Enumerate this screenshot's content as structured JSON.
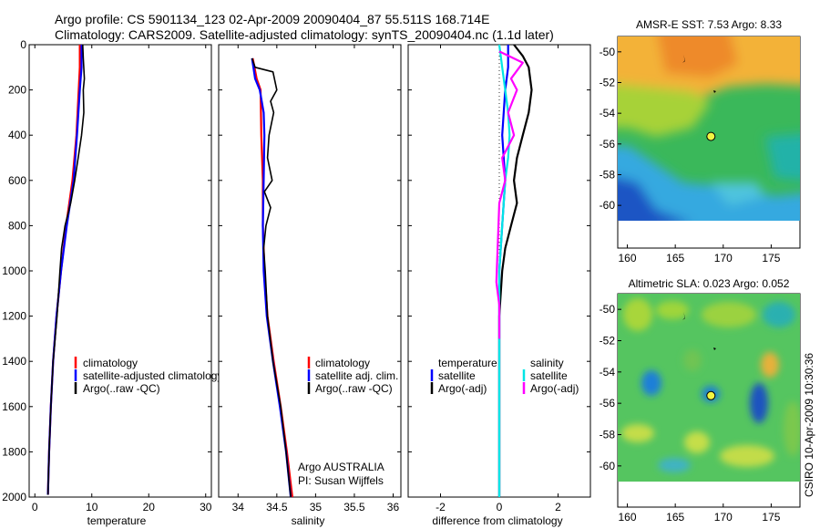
{
  "header": {
    "line1": "Argo profile: CS 5901134_123 02-Apr-2009 20090404_87 55.511S 168.714E",
    "line2": "Climatology: CARS2009. Satellite-adjusted climatology: synTS_20090404.nc (1.1d later)"
  },
  "side_label": "CSIRO 10-Apr-2009 10:30:36",
  "colors": {
    "climatology": "#ff0000",
    "satellite": "#0000ff",
    "argo": "#000000",
    "sat_salinity": "#00e5e5",
    "argo_adj_salinity": "#ff00ff"
  },
  "chart_data": [
    {
      "type": "line",
      "xlabel": "temperature",
      "xlim": [
        -1,
        31
      ],
      "ylim": [
        0,
        2000
      ],
      "xticks": [
        0,
        10,
        20,
        30
      ],
      "yticks": [
        0,
        200,
        400,
        600,
        800,
        1000,
        1200,
        1400,
        1600,
        1800,
        2000
      ],
      "y_reversed": true,
      "legend": [
        "climatology",
        "satellite-adjusted climatology",
        "Argo(..raw -QC)"
      ],
      "series": [
        {
          "name": "climatology",
          "points": [
            [
              7.9,
              0
            ],
            [
              7.9,
              100
            ],
            [
              7.7,
              200
            ],
            [
              7.3,
              400
            ],
            [
              6.6,
              600
            ],
            [
              5.5,
              800
            ],
            [
              4.6,
              1000
            ],
            [
              3.8,
              1200
            ],
            [
              3.2,
              1400
            ],
            [
              2.8,
              1600
            ],
            [
              2.5,
              1800
            ],
            [
              2.3,
              1990
            ]
          ]
        },
        {
          "name": "satellite-adjusted climatology",
          "points": [
            [
              8.2,
              0
            ],
            [
              8.2,
              100
            ],
            [
              7.9,
              200
            ],
            [
              7.4,
              400
            ],
            [
              6.8,
              600
            ],
            [
              5.6,
              800
            ],
            [
              4.6,
              1000
            ],
            [
              3.8,
              1200
            ],
            [
              3.2,
              1400
            ],
            [
              2.8,
              1600
            ],
            [
              2.5,
              1800
            ],
            [
              2.3,
              1990
            ]
          ]
        },
        {
          "name": "Argo(..raw -QC)",
          "points": [
            [
              8.4,
              0
            ],
            [
              8.5,
              60
            ],
            [
              8.7,
              150
            ],
            [
              8.5,
              200
            ],
            [
              8.6,
              300
            ],
            [
              8.2,
              400
            ],
            [
              7.6,
              500
            ],
            [
              7.0,
              600
            ],
            [
              6.3,
              700
            ],
            [
              5.3,
              800
            ],
            [
              4.7,
              900
            ],
            [
              4.4,
              1000
            ],
            [
              3.9,
              1200
            ],
            [
              3.2,
              1400
            ],
            [
              2.8,
              1600
            ],
            [
              2.5,
              1800
            ],
            [
              2.3,
              1990
            ]
          ]
        }
      ]
    },
    {
      "type": "line",
      "xlabel": "salinity",
      "xlim": [
        33.75,
        36.1
      ],
      "ylim": [
        0,
        2000
      ],
      "xticks": [
        34,
        34.5,
        35,
        35.5,
        36
      ],
      "yticks": [
        0,
        200,
        400,
        600,
        800,
        1000,
        1200,
        1400,
        1600,
        1800,
        2000
      ],
      "y_reversed": true,
      "legend": [
        "climatology",
        "satellite adj. clim.",
        "Argo(..raw -QC)"
      ],
      "annotations": [
        "Argo AUSTRALIA",
        "PI: Susan Wijffels"
      ],
      "series": [
        {
          "name": "climatology",
          "points": [
            [
              34.19,
              60
            ],
            [
              34.24,
              150
            ],
            [
              34.29,
              200
            ],
            [
              34.3,
              400
            ],
            [
              34.32,
              600
            ],
            [
              34.32,
              800
            ],
            [
              34.34,
              1000
            ],
            [
              34.38,
              1200
            ],
            [
              34.46,
              1400
            ],
            [
              34.55,
              1600
            ],
            [
              34.63,
              1800
            ],
            [
              34.7,
              2000
            ]
          ]
        },
        {
          "name": "satellite adj. clim.",
          "points": [
            [
              34.18,
              60
            ],
            [
              34.22,
              150
            ],
            [
              34.28,
              200
            ],
            [
              34.33,
              300
            ],
            [
              34.34,
              400
            ],
            [
              34.33,
              600
            ],
            [
              34.32,
              800
            ],
            [
              34.33,
              1000
            ],
            [
              34.37,
              1200
            ],
            [
              34.45,
              1400
            ],
            [
              34.54,
              1600
            ],
            [
              34.62,
              1800
            ],
            [
              34.68,
              2000
            ]
          ]
        },
        {
          "name": "Argo(..raw -QC)",
          "points": [
            [
              34.18,
              60
            ],
            [
              34.22,
              100
            ],
            [
              34.45,
              120
            ],
            [
              34.5,
              200
            ],
            [
              34.42,
              250
            ],
            [
              34.46,
              300
            ],
            [
              34.4,
              400
            ],
            [
              34.38,
              500
            ],
            [
              34.44,
              600
            ],
            [
              34.34,
              650
            ],
            [
              34.42,
              720
            ],
            [
              34.36,
              800
            ],
            [
              34.33,
              900
            ],
            [
              34.35,
              1000
            ],
            [
              34.38,
              1200
            ],
            [
              34.45,
              1400
            ],
            [
              34.55,
              1600
            ],
            [
              34.62,
              1800
            ],
            [
              34.68,
              2000
            ]
          ]
        }
      ]
    },
    {
      "type": "line",
      "xlabel": "difference from climatology",
      "xlim": [
        -3.1,
        3.1
      ],
      "ylim": [
        0,
        2000
      ],
      "xticks": [
        -2,
        0,
        2
      ],
      "yticks": [
        0,
        200,
        400,
        600,
        800,
        1000,
        1200,
        1400,
        1600,
        1800,
        2000
      ],
      "y_reversed": true,
      "legend_left_title": "temperature",
      "legend_right_title": "salinity",
      "legend": [
        "satellite",
        "Argo(-adj)",
        "satellite",
        "Argo(-adj)"
      ],
      "series": [
        {
          "name": "temperature satellite",
          "points": [
            [
              0.3,
              0
            ],
            [
              0.3,
              100
            ],
            [
              0.2,
              200
            ],
            [
              0.1,
              400
            ],
            [
              0.2,
              600
            ],
            [
              0.1,
              800
            ],
            [
              0.0,
              1000
            ],
            [
              0.0,
              1200
            ],
            [
              0.0,
              1400
            ],
            [
              0.0,
              1600
            ],
            [
              0.0,
              1800
            ],
            [
              0.0,
              2000
            ]
          ]
        },
        {
          "name": "temperature Argo(-adj)",
          "points": [
            [
              0.5,
              0
            ],
            [
              0.8,
              50
            ],
            [
              1.0,
              100
            ],
            [
              1.1,
              200
            ],
            [
              1.0,
              300
            ],
            [
              0.8,
              400
            ],
            [
              0.6,
              500
            ],
            [
              0.5,
              600
            ],
            [
              0.6,
              700
            ],
            [
              0.4,
              800
            ],
            [
              0.2,
              900
            ],
            [
              0.1,
              1000
            ],
            [
              0.0,
              1200
            ],
            [
              0.0,
              1600
            ],
            [
              0.0,
              2000
            ]
          ]
        },
        {
          "name": "salinity satellite",
          "points": [
            [
              0.0,
              0
            ],
            [
              0.1,
              100
            ],
            [
              0.2,
              200
            ],
            [
              0.3,
              300
            ],
            [
              0.35,
              400
            ],
            [
              0.3,
              500
            ],
            [
              0.2,
              600
            ],
            [
              0.1,
              800
            ],
            [
              0.0,
              1000
            ],
            [
              0.0,
              1200
            ],
            [
              0.0,
              1600
            ],
            [
              0.0,
              2000
            ]
          ]
        },
        {
          "name": "salinity Argo(-adj)",
          "points": [
            [
              0.0,
              30
            ],
            [
              0.8,
              80
            ],
            [
              0.4,
              150
            ],
            [
              0.6,
              200
            ],
            [
              0.3,
              300
            ],
            [
              0.5,
              400
            ],
            [
              0.1,
              500
            ],
            [
              0.2,
              600
            ],
            [
              0.0,
              700
            ],
            [
              -0.1,
              1050
            ],
            [
              0.0,
              1150
            ],
            [
              0.0,
              1300
            ]
          ]
        }
      ]
    },
    {
      "type": "heatmap",
      "title": "AMSR-E SST: 7.53 Argo: 8.33",
      "xlim": [
        159,
        178
      ],
      "ylim": [
        -61,
        -49
      ],
      "xticks": [
        160,
        165,
        170,
        175
      ],
      "yticks": [
        -50,
        -52,
        -54,
        -56,
        -58,
        -60
      ],
      "marker": [
        168.714,
        -55.511
      ]
    },
    {
      "type": "heatmap",
      "title": "Altimetric SLA: 0.023 Argo: 0.052",
      "xlim": [
        159,
        178
      ],
      "ylim": [
        -61,
        -49
      ],
      "xticks": [
        160,
        165,
        170,
        175
      ],
      "yticks": [
        -50,
        -52,
        -54,
        -56,
        -58,
        -60
      ],
      "marker": [
        168.714,
        -55.511
      ]
    }
  ]
}
